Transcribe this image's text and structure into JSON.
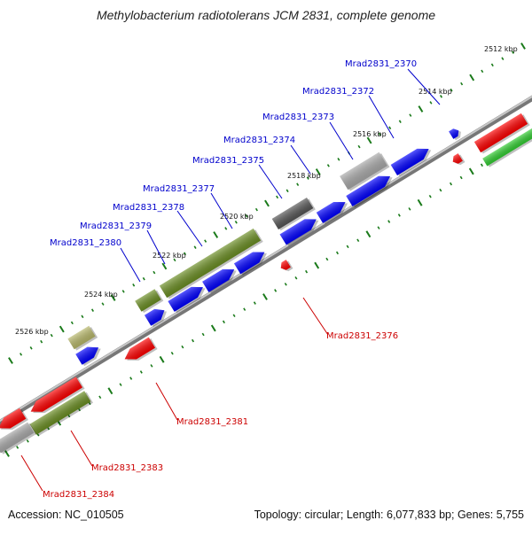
{
  "title": "Methylobacterium radiotolerans JCM 2831, complete genome",
  "footer": {
    "accession": "Accession: NC_010505",
    "topology": "Topology: circular;",
    "length": "Length: 6,077,833 bp;",
    "genes": "Genes: 5,755"
  },
  "kbp_labels": [
    "2512 kbp",
    "2514 kbp",
    "2516 kbp",
    "2518 kbp",
    "2520 kbp",
    "2522 kbp",
    "2524 kbp",
    "2526 kbp"
  ],
  "gene_labels": {
    "top": [
      "Mrad2831_2370",
      "Mrad2831_2372",
      "Mrad2831_2373",
      "Mrad2831_2374",
      "Mrad2831_2375",
      "Mrad2831_2377",
      "Mrad2831_2378",
      "Mrad2831_2379",
      "Mrad2831_2380"
    ],
    "bottom": [
      "Mrad2831_2376",
      "Mrad2831_2381",
      "Mrad2831_2383",
      "Mrad2831_2384"
    ]
  },
  "colors": {
    "forward_cds": "#0000ff",
    "reverse_cds": "#ff0000",
    "olive": "#6b8e23",
    "gray": "#a9a9a9",
    "dark_gray": "#555555",
    "green": "#32cd32",
    "backbone": "#888888",
    "tick_minor": "#1a7a1a",
    "label_top": "#0000cc",
    "label_bottom": "#cc0000"
  }
}
